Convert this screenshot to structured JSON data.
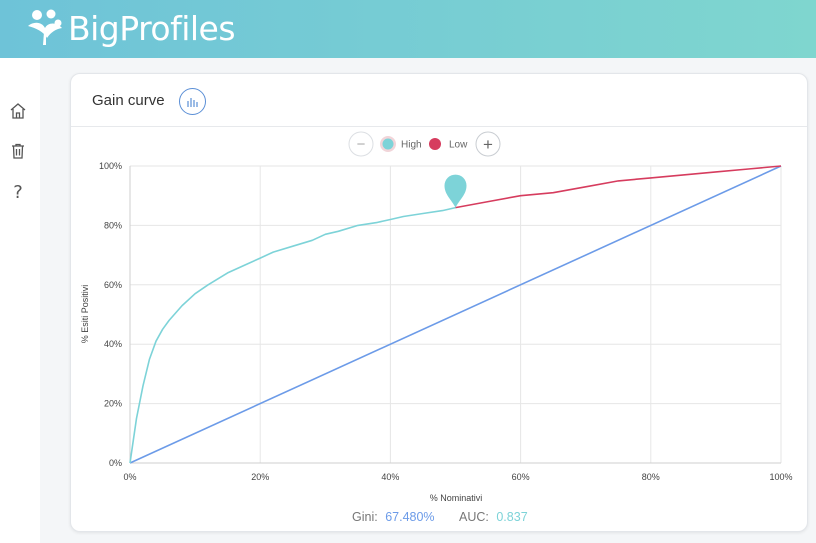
{
  "app": {
    "brand": "BigProfiles"
  },
  "sidebar": {
    "items": [
      {
        "icon": "home-icon"
      },
      {
        "icon": "trash-icon"
      },
      {
        "icon": "help-icon",
        "glyph": "?"
      }
    ]
  },
  "card": {
    "title": "Gain curve",
    "toggle_icon": "bar-chart-icon"
  },
  "legend": {
    "minus_label": "−",
    "plus_label": "+",
    "items": [
      {
        "label": "High",
        "color": "#7dd3d8"
      },
      {
        "label": "Low",
        "color": "#d63c5e"
      }
    ]
  },
  "metrics": {
    "gini_label": "Gini:",
    "gini_value": "67.480%",
    "auc_label": "AUC:",
    "auc_value": "0.837"
  },
  "chart_data": {
    "type": "line",
    "xlabel": "% Nominativi",
    "ylabel": "% Esiti Positivi",
    "xlim": [
      0,
      100
    ],
    "ylim": [
      0,
      100
    ],
    "x_ticks": [
      "0%",
      "20%",
      "40%",
      "60%",
      "80%",
      "100%"
    ],
    "y_ticks": [
      "0%",
      "20%",
      "40%",
      "60%",
      "80%",
      "100%"
    ],
    "grid": true,
    "marker_at": [
      50,
      86
    ],
    "series": [
      {
        "name": "High",
        "color": "#7dd3d8",
        "x": [
          0,
          1,
          2,
          3,
          4,
          5,
          6,
          8,
          10,
          12,
          15,
          18,
          20,
          22,
          25,
          28,
          30,
          32,
          35,
          38,
          40,
          42,
          45,
          48,
          50
        ],
        "y": [
          0,
          15,
          26,
          35,
          41,
          45,
          48,
          53,
          57,
          60,
          64,
          67,
          69,
          71,
          73,
          75,
          77,
          78,
          80,
          81,
          82,
          83,
          84,
          85,
          86
        ]
      },
      {
        "name": "Low",
        "color": "#d63c5e",
        "x": [
          50,
          55,
          60,
          65,
          70,
          75,
          80,
          85,
          90,
          95,
          100
        ],
        "y": [
          86,
          88,
          90,
          91,
          93,
          95,
          96,
          97,
          98,
          99,
          100
        ]
      },
      {
        "color": "#6c9be8",
        "x": [
          0,
          100
        ],
        "y": [
          0,
          100
        ]
      }
    ]
  }
}
